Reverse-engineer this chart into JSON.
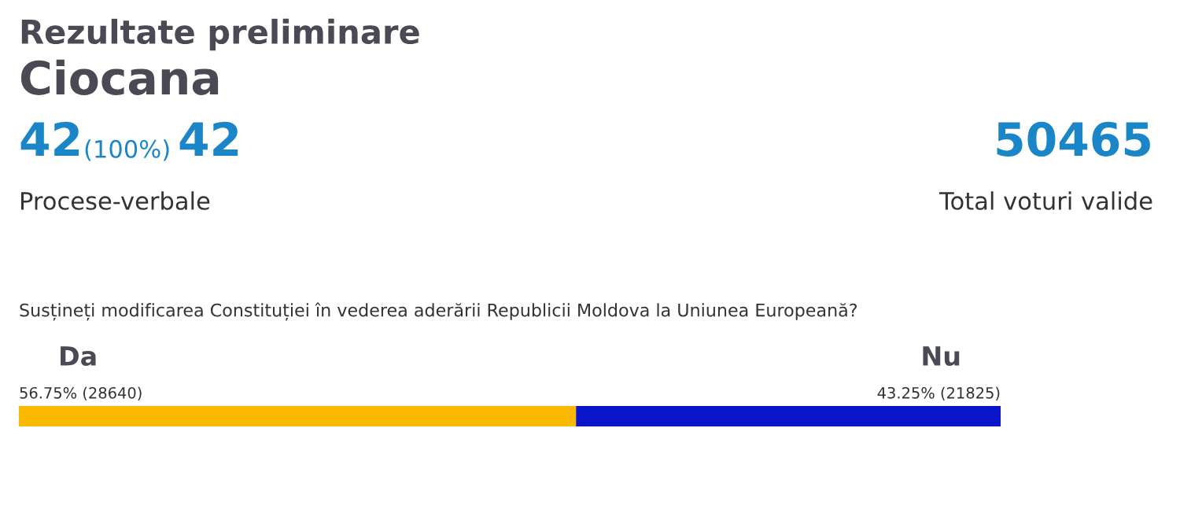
{
  "chart_data": [
    {
      "type": "other",
      "title": "Rezultate preliminare",
      "subtitle": "Ciocana",
      "annotations": [
        "42",
        "(100%)",
        "42",
        "Procese-verbale",
        "50465",
        "Total voturi valide"
      ]
    },
    {
      "type": "bar",
      "orientation": "horizontal",
      "stacked": true,
      "title": "Susțineți modificarea Constituției în vederea aderării Republicii Moldova la Uniunea Europeană?",
      "categories": [
        null
      ],
      "legend": false,
      "series": [
        {
          "name": "Da",
          "color": "#fbb800",
          "values": [
            56.75
          ],
          "value_labels": [
            "56.75% (28640)"
          ]
        },
        {
          "name": "Nu",
          "color": "#0a14c8",
          "values": [
            43.25
          ],
          "value_labels": [
            "43.25% (21825)"
          ]
        }
      ]
    }
  ]
}
